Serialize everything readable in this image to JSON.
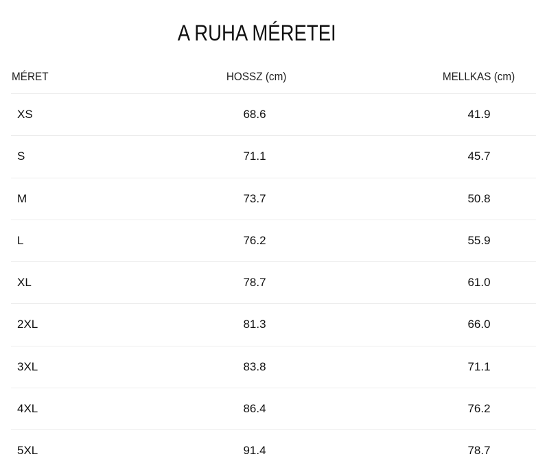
{
  "title": "A RUHA MÉRETEI",
  "headers": [
    "MÉRET",
    "HOSSZ (cm)",
    "MELLKAS (cm)"
  ],
  "rows": [
    [
      "XS",
      "68.6",
      "41.9"
    ],
    [
      "S",
      "71.1",
      "45.7"
    ],
    [
      "M",
      "73.7",
      "50.8"
    ],
    [
      "L",
      "76.2",
      "55.9"
    ],
    [
      "XL",
      "78.7",
      "61.0"
    ],
    [
      "2XL",
      "81.3",
      "66.0"
    ],
    [
      "3XL",
      "83.8",
      "71.1"
    ],
    [
      "4XL",
      "86.4",
      "76.2"
    ],
    [
      "5XL",
      "91.4",
      "78.7"
    ]
  ]
}
